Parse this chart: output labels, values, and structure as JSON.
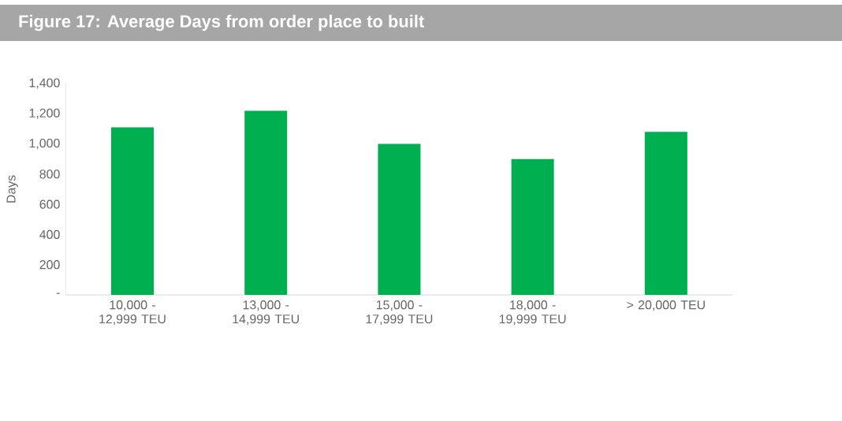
{
  "chart_data": {
    "type": "bar",
    "title": "Figure 17: Average Days from order place to built",
    "ylabel": "Days",
    "categories": [
      "10,000 - 12,999 TEU",
      "13,000 - 14,999 TEU",
      "15,000 - 17,999 TEU",
      "18,000 - 19,999 TEU",
      "> 20,000 TEU"
    ],
    "values": [
      1110,
      1220,
      1000,
      900,
      1080
    ],
    "color": "#00b050",
    "ylim": [
      0,
      1400
    ],
    "yticks": [
      {
        "value": 0,
        "label": "-"
      },
      200,
      400,
      600,
      800,
      "1,000",
      "1,200",
      "1,400"
    ],
    "grid": false
  }
}
